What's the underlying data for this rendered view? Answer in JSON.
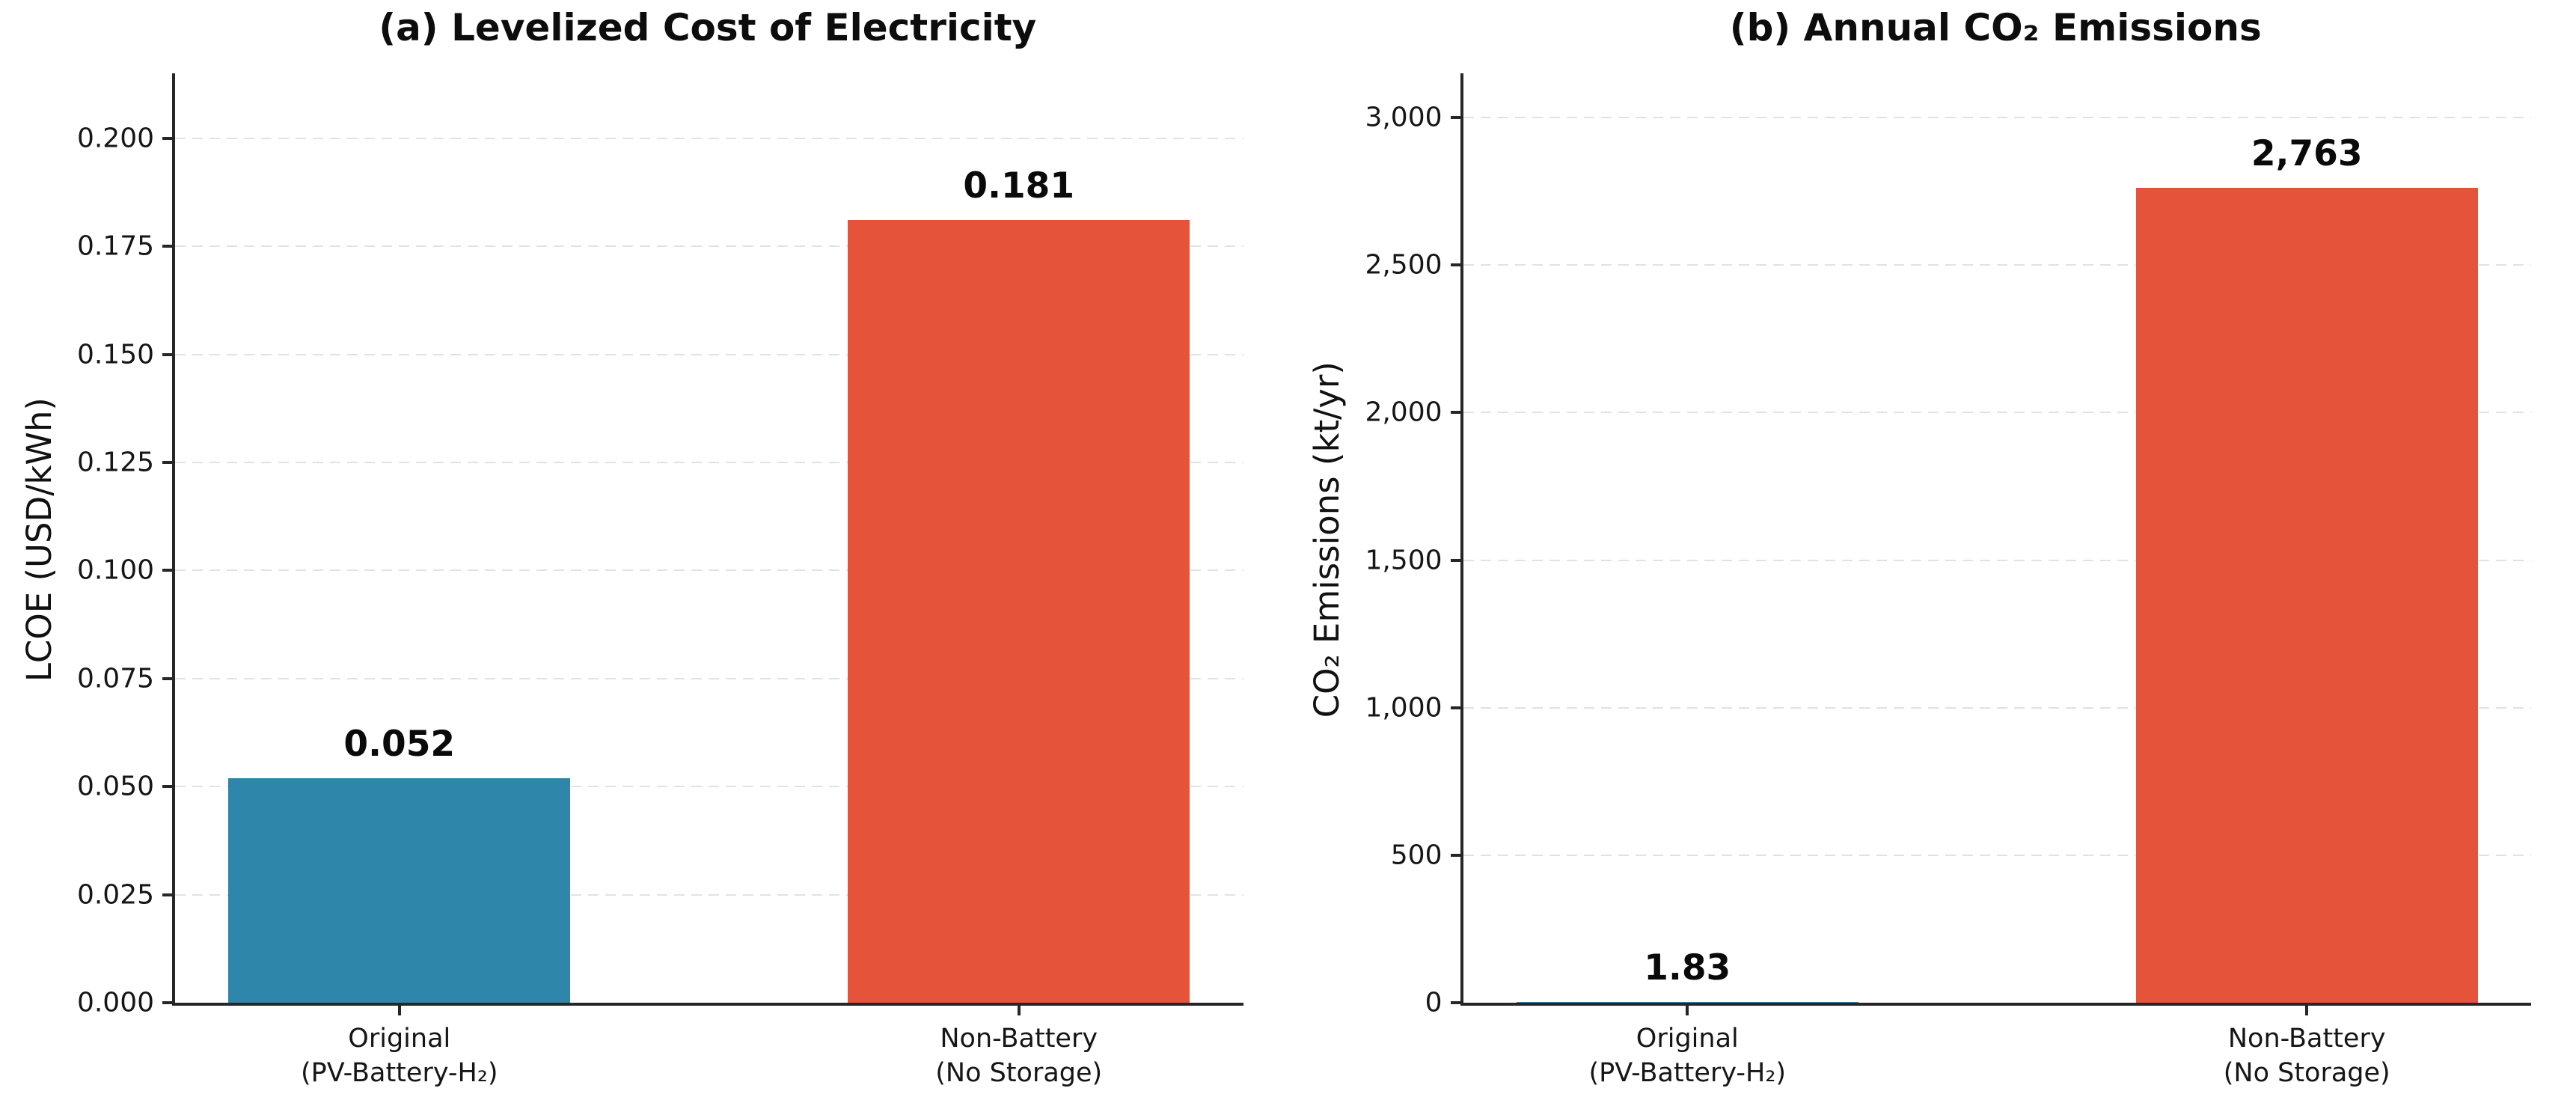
{
  "figure": {
    "background": "#ffffff",
    "axis_color": "#262626",
    "grid_color": "#e2e2e2",
    "text_color": "#111111"
  },
  "chart_data": [
    {
      "type": "bar",
      "title": "(a) Levelized Cost of Electricity",
      "ylabel": "LCOE (USD/kWh)",
      "xlabel": "",
      "categories": [
        {
          "line1": "Original",
          "line2": "(PV-Battery-H₂)"
        },
        {
          "line1": "Non-Battery",
          "line2": "(No Storage)"
        }
      ],
      "values": [
        0.052,
        0.181
      ],
      "value_labels": [
        "0.052",
        "0.181"
      ],
      "bar_colors": [
        "#2E86AB",
        "#E5543A"
      ],
      "ylim": [
        0,
        0.215
      ],
      "grid": "horizontal-dashed",
      "legend": "none",
      "yticks": [
        {
          "value": 0.0,
          "label": "0.000"
        },
        {
          "value": 0.025,
          "label": "0.025"
        },
        {
          "value": 0.05,
          "label": "0.050"
        },
        {
          "value": 0.075,
          "label": "0.075"
        },
        {
          "value": 0.1,
          "label": "0.100"
        },
        {
          "value": 0.125,
          "label": "0.125"
        },
        {
          "value": 0.15,
          "label": "0.150"
        },
        {
          "value": 0.175,
          "label": "0.175"
        },
        {
          "value": 0.2,
          "label": "0.200"
        }
      ]
    },
    {
      "type": "bar",
      "title": "(b) Annual CO₂ Emissions",
      "ylabel": "CO₂ Emissions (kt/yr)",
      "xlabel": "",
      "categories": [
        {
          "line1": "Original",
          "line2": "(PV-Battery-H₂)"
        },
        {
          "line1": "Non-Battery",
          "line2": "(No Storage)"
        }
      ],
      "values": [
        1.83,
        2763
      ],
      "value_labels": [
        "1.83",
        "2,763"
      ],
      "bar_colors": [
        "#2E86AB",
        "#E5543A"
      ],
      "ylim": [
        0,
        3150
      ],
      "grid": "horizontal-dashed",
      "legend": "none",
      "yticks": [
        {
          "value": 0,
          "label": "0"
        },
        {
          "value": 500,
          "label": "500"
        },
        {
          "value": 1000,
          "label": "1,000"
        },
        {
          "value": 1500,
          "label": "1,500"
        },
        {
          "value": 2000,
          "label": "2,000"
        },
        {
          "value": 2500,
          "label": "2,500"
        },
        {
          "value": 3000,
          "label": "3,000"
        }
      ]
    }
  ]
}
